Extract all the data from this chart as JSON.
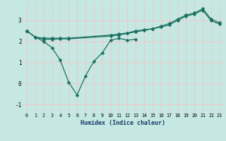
{
  "xlabel": "Humidex (Indice chaleur)",
  "xlim": [
    -0.5,
    23.5
  ],
  "ylim": [
    -1.4,
    3.9
  ],
  "yticks": [
    -1,
    0,
    1,
    2,
    3
  ],
  "xticks": [
    0,
    1,
    2,
    3,
    4,
    5,
    6,
    7,
    8,
    9,
    10,
    11,
    12,
    13,
    14,
    15,
    16,
    17,
    18,
    19,
    20,
    21,
    22,
    23
  ],
  "bg_color": "#c6e8e2",
  "grid_color": "#f0c8c8",
  "line_color": "#1a7060",
  "line1_x": [
    0,
    1,
    2,
    3,
    4,
    5,
    6,
    7,
    8,
    9,
    10,
    11,
    12,
    13
  ],
  "line1_y": [
    2.5,
    2.2,
    2.0,
    1.7,
    1.1,
    0.05,
    -0.55,
    0.35,
    1.05,
    1.45,
    2.05,
    2.15,
    2.05,
    2.1
  ],
  "line2_x": [
    0,
    1,
    2,
    3,
    4,
    5,
    10,
    11,
    12,
    13,
    14,
    15,
    16,
    17,
    18,
    19,
    20,
    21,
    22,
    23
  ],
  "line2_y": [
    2.5,
    2.2,
    2.15,
    2.15,
    2.15,
    2.15,
    2.3,
    2.35,
    2.4,
    2.5,
    2.55,
    2.6,
    2.72,
    2.85,
    3.05,
    3.25,
    3.35,
    3.55,
    3.05,
    2.88
  ],
  "line3_x": [
    0,
    1,
    2,
    3,
    4,
    5,
    10,
    11,
    12,
    13,
    14,
    15,
    16,
    17,
    18,
    19,
    20,
    21,
    22,
    23
  ],
  "line3_y": [
    2.5,
    2.2,
    2.1,
    2.1,
    2.12,
    2.12,
    2.25,
    2.3,
    2.38,
    2.45,
    2.52,
    2.6,
    2.68,
    2.78,
    3.0,
    3.2,
    3.3,
    3.48,
    2.98,
    2.82
  ]
}
